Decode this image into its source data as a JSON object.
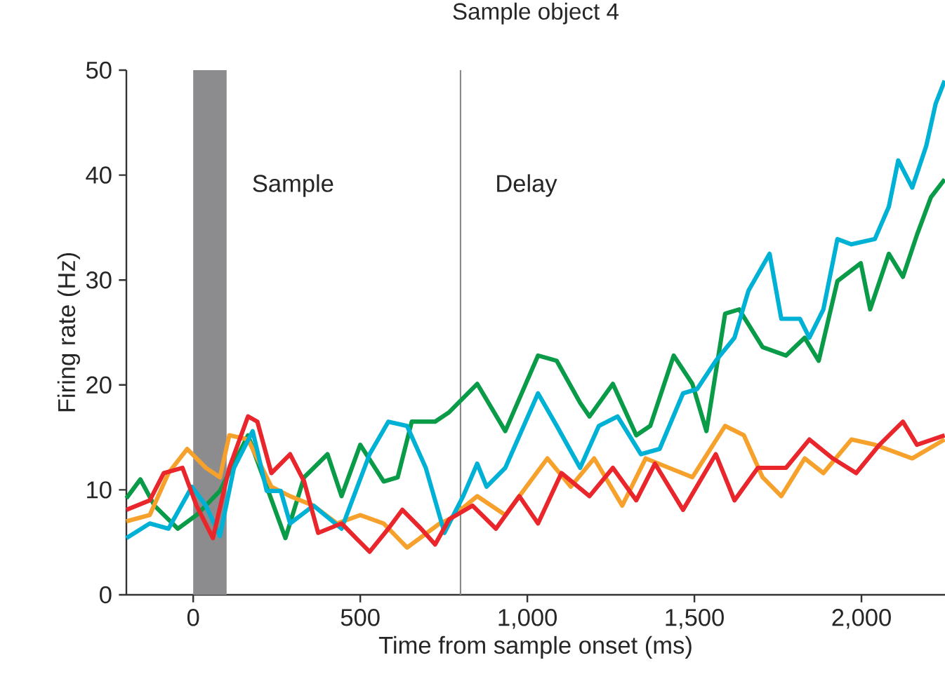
{
  "chart_data": {
    "type": "line",
    "title": "Sample object 4",
    "xlabel": "Time from sample onset (ms)",
    "ylabel": "Firing rate (Hz)",
    "xlim": [
      -200,
      2250
    ],
    "ylim": [
      0,
      50
    ],
    "xticks": [
      0,
      500,
      {
        "value": 1000,
        "label": "1,000"
      },
      {
        "value": 1500,
        "label": "1,500"
      },
      {
        "value": 2000,
        "label": "2,000"
      }
    ],
    "yticks": [
      0,
      10,
      20,
      30,
      40,
      50
    ],
    "bands": [
      {
        "axis": "x",
        "from": 0,
        "to": 100,
        "label": "Sample",
        "color": "#8c8c8f"
      }
    ],
    "ref_lines": [
      {
        "axis": "x",
        "value": 800,
        "label": "Delay",
        "color": "#8a8a8a"
      }
    ],
    "series": [
      {
        "color": "#0a9b48",
        "x": [
          -200,
          -158,
          -116,
          -46,
          10,
          80,
          164,
          220,
          276,
          332,
          402,
          444,
          500,
          570,
          612,
          654,
          724,
          766,
          850,
          934,
          1032,
          1088,
          1158,
          1186,
          1256,
          1326,
          1368,
          1438,
          1494,
          1536,
          1592,
          1634,
          1704,
          1774,
          1830,
          1872,
          1928,
          1998,
          2026,
          2082,
          2124,
          2166,
          2208,
          2249
        ],
        "values": [
          9.2,
          11,
          8.5,
          6.3,
          7.6,
          9.9,
          15.2,
          10.3,
          5.4,
          11.2,
          13.4,
          9.4,
          14.3,
          10.8,
          11.2,
          16.5,
          16.5,
          17.4,
          20.1,
          15.6,
          22.8,
          22.3,
          18.3,
          17,
          20.1,
          15.2,
          16.1,
          22.8,
          20.1,
          15.6,
          26.8,
          27.2,
          23.6,
          22.8,
          24.5,
          22.3,
          29.9,
          31.6,
          27.2,
          32.5,
          30.3,
          34.3,
          37.9,
          39.6
        ]
      },
      {
        "color": "#f6a12b",
        "x": [
          -200,
          -130,
          -74,
          -18,
          38,
          80,
          108,
          164,
          234,
          290,
          360,
          430,
          500,
          570,
          640,
          738,
          766,
          850,
          934,
          1060,
          1130,
          1200,
          1284,
          1354,
          1424,
          1494,
          1592,
          1648,
          1704,
          1760,
          1830,
          1886,
          1970,
          2040,
          2152,
          2249
        ],
        "values": [
          7,
          7.6,
          11.6,
          13.9,
          12.1,
          11.2,
          15.2,
          14.8,
          10.3,
          9.4,
          8.5,
          6.8,
          7.6,
          6.8,
          4.5,
          6.8,
          7.2,
          9.4,
          7.6,
          13,
          10.3,
          13,
          8.5,
          13,
          12.1,
          11.2,
          16.1,
          15.2,
          11.2,
          9.4,
          13,
          11.6,
          14.8,
          14.3,
          13,
          14.8
        ]
      },
      {
        "color": "#00b1d6",
        "x": [
          -200,
          -130,
          -74,
          -4,
          38,
          80,
          122,
          178,
          220,
          262,
          290,
          360,
          444,
          528,
          584,
          640,
          696,
          752,
          766,
          808,
          850,
          878,
          934,
          1032,
          1088,
          1158,
          1214,
          1270,
          1340,
          1396,
          1466,
          1508,
          1564,
          1620,
          1662,
          1725,
          1760,
          1816,
          1844,
          1886,
          1928,
          1970,
          2040,
          2082,
          2110,
          2152,
          2194,
          2222,
          2249
        ],
        "values": [
          5.4,
          6.8,
          6.3,
          10.3,
          8.5,
          5.6,
          12.1,
          15.6,
          9.9,
          9.9,
          6.8,
          8.5,
          6.3,
          13.4,
          16.5,
          16.1,
          12.1,
          5.9,
          6.8,
          9.4,
          12.5,
          10.3,
          12.1,
          19.2,
          16.1,
          12.1,
          16.1,
          17,
          13.4,
          13.9,
          19.2,
          19.6,
          22.3,
          24.5,
          29,
          32.5,
          26.3,
          26.3,
          24.5,
          27.2,
          33.9,
          33.4,
          33.9,
          37,
          41.4,
          38.8,
          42.8,
          46.8,
          49
        ]
      },
      {
        "color": "#e8262b",
        "x": [
          -200,
          -130,
          -88,
          -32,
          10,
          59,
          108,
          164,
          192,
          234,
          290,
          332,
          374,
          444,
          528,
          584,
          626,
          682,
          724,
          766,
          836,
          906,
          976,
          1032,
          1102,
          1186,
          1256,
          1326,
          1382,
          1466,
          1564,
          1620,
          1690,
          1774,
          1844,
          1914,
          1984,
          2054,
          2124,
          2166,
          2249
        ],
        "values": [
          8.1,
          9,
          11.6,
          12.1,
          8.5,
          5.4,
          12.1,
          17,
          16.5,
          11.6,
          13.4,
          10.8,
          5.9,
          6.8,
          4.1,
          6.3,
          8.1,
          6.3,
          4.8,
          7.2,
          8.5,
          6.3,
          9.4,
          6.8,
          11.6,
          9.4,
          12.1,
          9,
          12.5,
          8.1,
          13.4,
          9,
          12.1,
          12.1,
          14.8,
          13,
          11.6,
          14.3,
          16.5,
          14.3,
          15.2
        ]
      }
    ]
  }
}
